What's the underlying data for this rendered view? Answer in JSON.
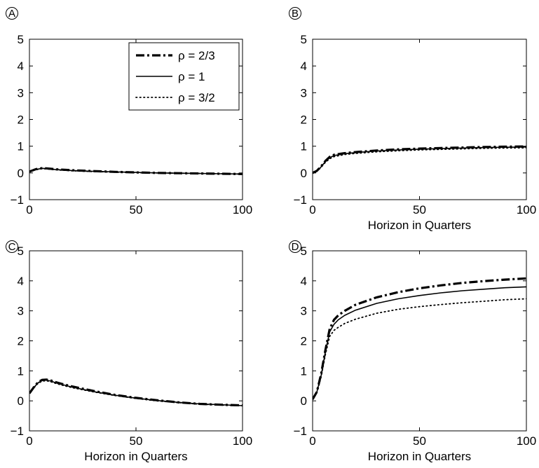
{
  "chart_data": [
    {
      "type": "line",
      "panel": "A",
      "xlabel": "",
      "ylabel": "",
      "xlim": [
        0,
        100
      ],
      "ylim": [
        -1,
        5
      ],
      "xticks": [
        0,
        50,
        100
      ],
      "yticks": [
        -1,
        0,
        1,
        2,
        3,
        4,
        5
      ],
      "legend": {
        "show": true,
        "position": "top-right"
      },
      "series": [
        {
          "name": "ρ = 2/3",
          "style": "dashdot",
          "x": [
            0,
            3,
            6,
            8,
            12,
            20,
            30,
            40,
            50,
            60,
            70,
            80,
            90,
            100
          ],
          "y": [
            0.05,
            0.14,
            0.18,
            0.17,
            0.14,
            0.1,
            0.07,
            0.04,
            0.02,
            0.0,
            -0.01,
            -0.02,
            -0.03,
            -0.04
          ]
        },
        {
          "name": "ρ = 1",
          "style": "solid",
          "x": [
            0,
            3,
            6,
            8,
            12,
            20,
            30,
            40,
            50,
            60,
            70,
            80,
            90,
            100
          ],
          "y": [
            0.05,
            0.13,
            0.17,
            0.16,
            0.13,
            0.09,
            0.06,
            0.04,
            0.02,
            0.0,
            -0.01,
            -0.02,
            -0.03,
            -0.04
          ]
        },
        {
          "name": "ρ = 3/2",
          "style": "dotted",
          "x": [
            0,
            3,
            6,
            8,
            12,
            20,
            30,
            40,
            50,
            60,
            70,
            80,
            90,
            100
          ],
          "y": [
            0.05,
            0.12,
            0.16,
            0.15,
            0.12,
            0.08,
            0.05,
            0.03,
            0.01,
            0.0,
            -0.01,
            -0.02,
            -0.03,
            -0.04
          ]
        }
      ]
    },
    {
      "type": "line",
      "panel": "B",
      "xlabel": "Horizon in Quarters",
      "ylabel": "",
      "xlim": [
        0,
        100
      ],
      "ylim": [
        -1,
        5
      ],
      "xticks": [
        0,
        50,
        100
      ],
      "yticks": [
        -1,
        0,
        1,
        2,
        3,
        4,
        5
      ],
      "legend": {
        "show": false
      },
      "series": [
        {
          "name": "ρ = 2/3",
          "style": "dashdot",
          "x": [
            0,
            2,
            4,
            6,
            8,
            10,
            15,
            20,
            30,
            40,
            50,
            60,
            70,
            80,
            90,
            100
          ],
          "y": [
            0.0,
            0.08,
            0.25,
            0.45,
            0.6,
            0.68,
            0.74,
            0.78,
            0.84,
            0.88,
            0.91,
            0.93,
            0.95,
            0.97,
            0.98,
            0.99
          ]
        },
        {
          "name": "ρ = 1",
          "style": "solid",
          "x": [
            0,
            2,
            4,
            6,
            8,
            10,
            15,
            20,
            30,
            40,
            50,
            60,
            70,
            80,
            90,
            100
          ],
          "y": [
            0.0,
            0.07,
            0.23,
            0.43,
            0.57,
            0.65,
            0.72,
            0.76,
            0.82,
            0.86,
            0.89,
            0.91,
            0.93,
            0.95,
            0.96,
            0.97
          ]
        },
        {
          "name": "ρ = 3/2",
          "style": "dotted",
          "x": [
            0,
            2,
            4,
            6,
            8,
            10,
            15,
            20,
            30,
            40,
            50,
            60,
            70,
            80,
            90,
            100
          ],
          "y": [
            0.0,
            0.06,
            0.21,
            0.4,
            0.53,
            0.61,
            0.69,
            0.73,
            0.79,
            0.83,
            0.86,
            0.88,
            0.9,
            0.92,
            0.93,
            0.94
          ]
        }
      ]
    },
    {
      "type": "line",
      "panel": "C",
      "xlabel": "Horizon in Quarters",
      "ylabel": "",
      "xlim": [
        0,
        100
      ],
      "ylim": [
        -1,
        5
      ],
      "xticks": [
        0,
        50,
        100
      ],
      "yticks": [
        -1,
        0,
        1,
        2,
        3,
        4,
        5
      ],
      "legend": {
        "show": false
      },
      "series": [
        {
          "name": "ρ = 2/3",
          "style": "dashdot",
          "x": [
            0,
            2,
            4,
            6,
            8,
            10,
            12,
            15,
            20,
            30,
            40,
            50,
            60,
            70,
            80,
            90,
            100
          ],
          "y": [
            0.25,
            0.45,
            0.62,
            0.7,
            0.71,
            0.68,
            0.63,
            0.57,
            0.48,
            0.33,
            0.2,
            0.1,
            0.02,
            -0.05,
            -0.1,
            -0.13,
            -0.15
          ]
        },
        {
          "name": "ρ = 1",
          "style": "solid",
          "x": [
            0,
            2,
            4,
            6,
            8,
            10,
            12,
            15,
            20,
            30,
            40,
            50,
            60,
            70,
            80,
            90,
            100
          ],
          "y": [
            0.25,
            0.44,
            0.6,
            0.68,
            0.69,
            0.66,
            0.61,
            0.55,
            0.46,
            0.31,
            0.19,
            0.09,
            0.01,
            -0.05,
            -0.1,
            -0.13,
            -0.16
          ]
        },
        {
          "name": "ρ = 3/2",
          "style": "dotted",
          "x": [
            0,
            2,
            4,
            6,
            8,
            10,
            12,
            15,
            20,
            30,
            40,
            50,
            60,
            70,
            80,
            90,
            100
          ],
          "y": [
            0.25,
            0.43,
            0.58,
            0.66,
            0.67,
            0.64,
            0.59,
            0.53,
            0.44,
            0.3,
            0.18,
            0.08,
            0.0,
            -0.06,
            -0.11,
            -0.14,
            -0.16
          ]
        }
      ]
    },
    {
      "type": "line",
      "panel": "D",
      "xlabel": "Horizon in Quarters",
      "ylabel": "",
      "xlim": [
        0,
        100
      ],
      "ylim": [
        -1,
        5
      ],
      "xticks": [
        0,
        50,
        100
      ],
      "yticks": [
        -1,
        0,
        1,
        2,
        3,
        4,
        5
      ],
      "legend": {
        "show": false
      },
      "series": [
        {
          "name": "ρ = 2/3",
          "style": "dashdot",
          "x": [
            0,
            2,
            4,
            6,
            8,
            10,
            12,
            15,
            20,
            30,
            40,
            50,
            60,
            70,
            80,
            90,
            100
          ],
          "y": [
            0.05,
            0.3,
            0.9,
            1.7,
            2.4,
            2.7,
            2.85,
            3.0,
            3.2,
            3.45,
            3.62,
            3.75,
            3.85,
            3.93,
            3.99,
            4.04,
            4.08
          ]
        },
        {
          "name": "ρ = 1",
          "style": "solid",
          "x": [
            0,
            2,
            4,
            6,
            8,
            10,
            12,
            15,
            20,
            30,
            40,
            50,
            60,
            70,
            80,
            90,
            100
          ],
          "y": [
            0.05,
            0.3,
            0.85,
            1.65,
            2.3,
            2.55,
            2.7,
            2.85,
            3.02,
            3.25,
            3.4,
            3.51,
            3.6,
            3.67,
            3.72,
            3.77,
            3.8
          ]
        },
        {
          "name": "ρ = 3/2",
          "style": "dotted",
          "x": [
            0,
            2,
            4,
            6,
            8,
            10,
            12,
            15,
            20,
            30,
            40,
            50,
            60,
            70,
            80,
            90,
            100
          ],
          "y": [
            0.05,
            0.28,
            0.8,
            1.55,
            2.15,
            2.35,
            2.45,
            2.58,
            2.72,
            2.92,
            3.05,
            3.14,
            3.21,
            3.27,
            3.32,
            3.37,
            3.4
          ]
        }
      ]
    }
  ]
}
